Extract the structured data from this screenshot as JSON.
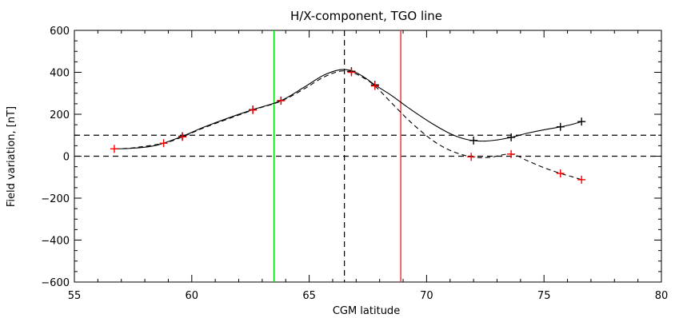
{
  "chart_data": {
    "type": "line",
    "title": "H/X-component, TGO line",
    "xlabel": "CGM latitude",
    "ylabel": "Field variation, [nT]",
    "xlim": [
      55,
      80
    ],
    "ylim": [
      -600,
      600
    ],
    "xticks": [
      55,
      60,
      65,
      70,
      75,
      80
    ],
    "yticks": [
      -600,
      -400,
      -200,
      0,
      200,
      400,
      600
    ],
    "xtick_labels": [
      "55",
      "60",
      "65",
      "70",
      "75",
      "80"
    ],
    "ytick_labels": [
      "−600",
      "−400",
      "−200",
      "0",
      "200",
      "400",
      "600"
    ],
    "grid": false,
    "series": [
      {
        "style": "solid",
        "color": "#000000",
        "marker": "+",
        "marker_color": "#000000",
        "x": [
          59.6,
          62.6,
          63.8,
          66.8,
          67.8,
          72.0,
          73.6,
          75.7,
          76.6
        ],
        "y": [
          95,
          222,
          265,
          405,
          340,
          75,
          90,
          140,
          165
        ]
      },
      {
        "style": "dashed",
        "color": "#000000",
        "marker": "+",
        "marker_color": "#ff0000",
        "x": [
          56.7,
          58.8,
          59.6,
          62.6,
          63.8,
          66.8,
          67.8,
          71.9,
          73.6,
          75.7,
          76.6
        ],
        "y": [
          35,
          62,
          92,
          220,
          265,
          400,
          335,
          -3,
          10,
          -82,
          -112
        ]
      }
    ],
    "curves": {
      "solid": {
        "x": [
          56.7,
          57.5,
          58.5,
          59.6,
          60.5,
          61.5,
          62.6,
          63.8,
          64.8,
          65.6,
          66.3,
          66.8,
          67.3,
          67.8,
          68.5,
          69.3,
          70.2,
          71.0,
          71.7,
          72.3,
          72.9,
          73.6,
          74.3,
          75.0,
          75.7,
          76.2,
          76.6
        ],
        "y": [
          35,
          38,
          52,
          95,
          138,
          180,
          222,
          265,
          330,
          385,
          412,
          408,
          380,
          340,
          290,
          225,
          158,
          108,
          80,
          72,
          76,
          90,
          110,
          126,
          140,
          152,
          165
        ]
      },
      "dashed": {
        "x": [
          56.7,
          57.5,
          58.8,
          59.6,
          60.5,
          61.5,
          62.6,
          63.8,
          64.8,
          65.6,
          66.3,
          66.8,
          67.3,
          67.8,
          68.5,
          69.3,
          70.2,
          71.0,
          71.9,
          72.7,
          73.6,
          74.3,
          75.0,
          75.7,
          76.2,
          76.6
        ],
        "y": [
          35,
          40,
          62,
          92,
          135,
          176,
          220,
          263,
          322,
          376,
          405,
          400,
          375,
          335,
          255,
          165,
          80,
          28,
          -3,
          -5,
          10,
          -22,
          -55,
          -82,
          -98,
          -112
        ]
      }
    },
    "reference_lines": {
      "horizontal_dashed": [
        0,
        100
      ],
      "vertical_dashed": [
        66.5
      ],
      "vertical_green": 63.5,
      "vertical_red": 68.9
    },
    "colors": {
      "axis": "#000000",
      "green_line": "#00dd00",
      "red_line": "#ff3333",
      "red_markers": "#ff0000"
    }
  }
}
